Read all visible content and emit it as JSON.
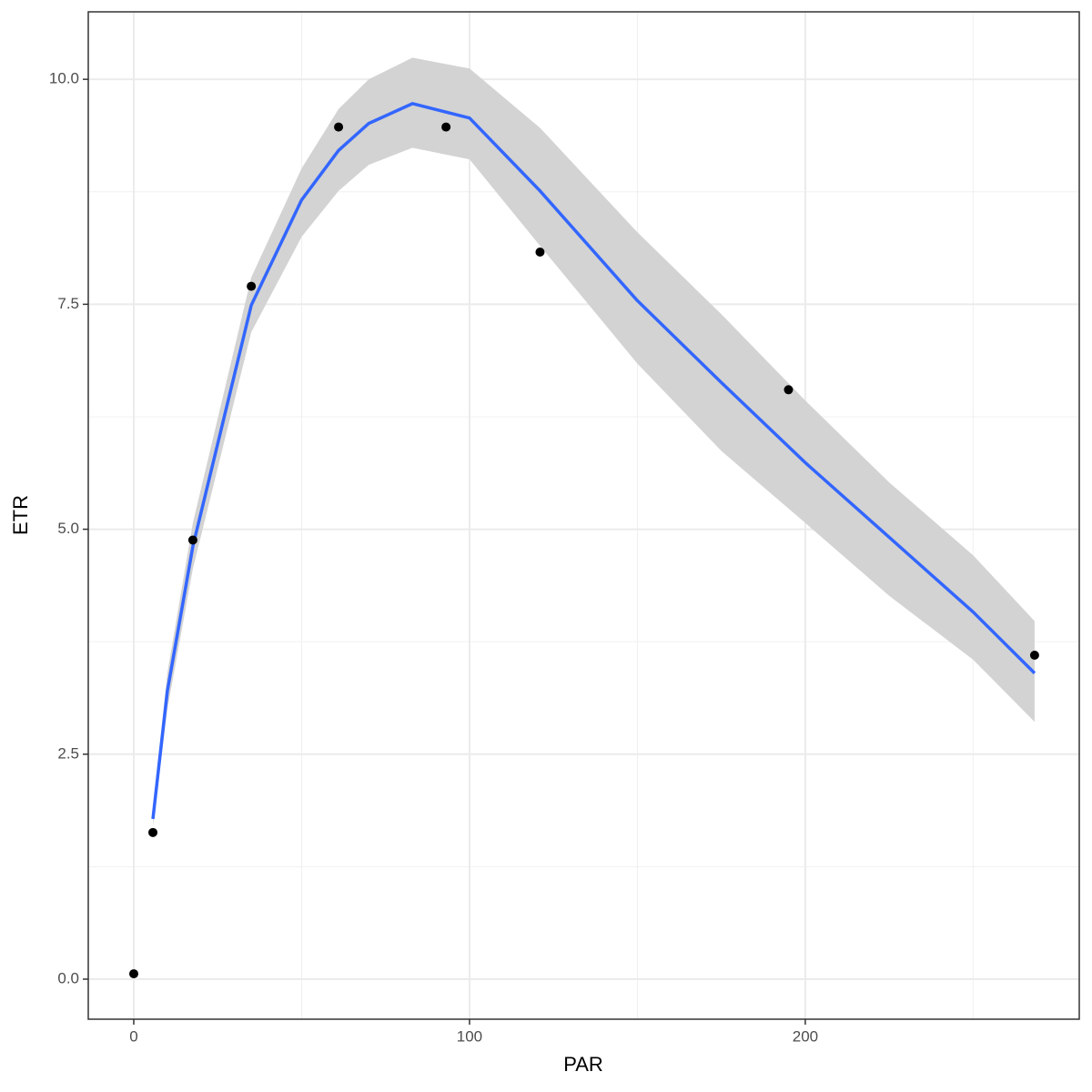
{
  "chart_data": {
    "type": "scatter",
    "x_label": "PAR",
    "y_label": "ETR",
    "xlim": [
      -13.55,
      281.6
    ],
    "ylim": [
      -0.445,
      10.75
    ],
    "xticks": [
      0,
      100,
      200
    ],
    "xminor": [
      50,
      150,
      250
    ],
    "yticks": [
      {
        "value": 0,
        "label": "0.0"
      },
      {
        "value": 2.5,
        "label": "2.5"
      },
      {
        "value": 5,
        "label": "5.0"
      },
      {
        "value": 7.5,
        "label": "7.5"
      },
      {
        "value": 10,
        "label": "10.0"
      }
    ],
    "yminor": [
      1.25,
      3.75,
      6.25,
      8.75
    ],
    "grid": true,
    "points": {
      "color": "#000000",
      "x": [
        0,
        5.7,
        17.6,
        35,
        61,
        93,
        121,
        195,
        268.3
      ],
      "values": [
        0.06,
        1.63,
        4.88,
        7.7,
        9.47,
        9.47,
        8.08,
        6.55,
        3.6
      ]
    },
    "fit": {
      "color": "#3366ff",
      "band_color": "#d3d3d3",
      "x": [
        5.7,
        10,
        17.6,
        35,
        50,
        61,
        70,
        83,
        100,
        121,
        150,
        175,
        200,
        225,
        250,
        268.3
      ],
      "values": [
        1.78,
        3.2,
        4.81,
        7.49,
        8.66,
        9.21,
        9.51,
        9.73,
        9.57,
        8.76,
        7.54,
        6.63,
        5.74,
        4.91,
        4.08,
        3.4
      ],
      "upper": [
        1.9,
        3.4,
        5.07,
        7.8,
        9.01,
        9.67,
        10.0,
        10.24,
        10.12,
        9.46,
        8.3,
        7.39,
        6.43,
        5.52,
        4.71,
        3.98
      ],
      "lower": [
        1.7,
        3.0,
        4.56,
        7.19,
        8.25,
        8.76,
        9.05,
        9.24,
        9.11,
        8.15,
        6.84,
        5.87,
        5.07,
        4.26,
        3.55,
        2.86
      ]
    }
  }
}
